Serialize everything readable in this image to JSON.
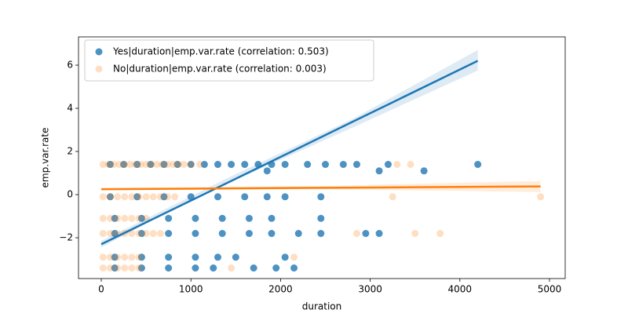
{
  "chart_data": {
    "type": "scatter",
    "xlabel": "duration",
    "ylabel": "emp.var.rate",
    "xlim": [
      -254,
      5175
    ],
    "ylim": [
      -3.89,
      7.31
    ],
    "xticks": [
      0,
      1000,
      2000,
      3000,
      4000,
      5000
    ],
    "yticks": [
      {
        "value": -2,
        "label": "−2"
      },
      0,
      2,
      4,
      6
    ],
    "legend": "upper left",
    "series": [
      {
        "name": "Yes|duration|emp.var.rate (correlation: 0.503)",
        "color": "#1f77b4",
        "alpha": 0.8,
        "x": [
          100,
          250,
          400,
          550,
          700,
          850,
          1000,
          1150,
          1300,
          1450,
          1600,
          1750,
          1900,
          2050,
          2300,
          2500,
          2700,
          2850,
          3200,
          4200,
          1850,
          3100,
          3600,
          100,
          400,
          700,
          1000,
          1300,
          1600,
          1850,
          2050,
          2450,
          150,
          450,
          750,
          1050,
          1350,
          1650,
          1900,
          2450,
          150,
          450,
          750,
          1050,
          1350,
          1650,
          1900,
          2200,
          2450,
          2950,
          3100,
          150,
          450,
          750,
          1050,
          1300,
          1500,
          2050,
          150,
          450,
          750,
          1050,
          1250,
          1700,
          1950,
          2150
        ],
        "values": [
          1.4,
          1.4,
          1.4,
          1.4,
          1.4,
          1.4,
          1.4,
          1.4,
          1.4,
          1.4,
          1.4,
          1.4,
          1.4,
          1.4,
          1.4,
          1.4,
          1.4,
          1.4,
          1.4,
          1.4,
          1.1,
          1.1,
          1.1,
          -0.1,
          -0.1,
          -0.1,
          -0.1,
          -0.1,
          -0.1,
          -0.1,
          -0.1,
          -0.1,
          -1.1,
          -1.1,
          -1.1,
          -1.1,
          -1.1,
          -1.1,
          -1.1,
          -1.1,
          -1.8,
          -1.8,
          -1.8,
          -1.8,
          -1.8,
          -1.8,
          -1.8,
          -1.8,
          -1.8,
          -1.8,
          -1.8,
          -2.9,
          -2.9,
          -2.9,
          -2.9,
          -2.9,
          -2.9,
          -2.9,
          -3.4,
          -3.4,
          -3.4,
          -3.4,
          -3.4,
          -3.4,
          -3.4,
          -3.4
        ],
        "fit": {
          "x": [
            0,
            700,
            1400,
            2800,
            4200
          ],
          "values": [
            -2.3,
            -0.883,
            0.533,
            3.367,
            6.2
          ],
          "ci_lower": [
            -2.45,
            -0.9,
            0.5,
            3.1,
            5.75
          ],
          "ci_upper": [
            -2.15,
            -0.7,
            0.75,
            3.5,
            6.7
          ]
        }
      },
      {
        "name": "No|duration|emp.var.rate (correlation: 0.003)",
        "color": "#ff7f0e",
        "alpha": 0.25,
        "x": [
          20,
          80,
          140,
          200,
          260,
          320,
          380,
          440,
          500,
          560,
          620,
          680,
          740,
          800,
          860,
          920,
          1000,
          1100,
          3300,
          3450,
          20,
          100,
          180,
          260,
          340,
          420,
          500,
          580,
          660,
          740,
          820,
          3250,
          4900,
          20,
          100,
          180,
          260,
          340,
          420,
          500,
          20,
          100,
          180,
          260,
          340,
          420,
          500,
          580,
          660,
          2850,
          3500,
          3780,
          20,
          100,
          180,
          260,
          340,
          420,
          2150,
          20,
          100,
          180,
          260,
          340,
          420,
          1450
        ],
        "values": [
          1.4,
          1.4,
          1.4,
          1.4,
          1.4,
          1.4,
          1.4,
          1.4,
          1.4,
          1.4,
          1.4,
          1.4,
          1.4,
          1.4,
          1.4,
          1.4,
          1.4,
          1.4,
          1.4,
          1.4,
          -0.1,
          -0.1,
          -0.1,
          -0.1,
          -0.1,
          -0.1,
          -0.1,
          -0.1,
          -0.1,
          -0.1,
          -0.1,
          -0.1,
          -0.1,
          -1.1,
          -1.1,
          -1.1,
          -1.1,
          -1.1,
          -1.1,
          -1.1,
          -1.8,
          -1.8,
          -1.8,
          -1.8,
          -1.8,
          -1.8,
          -1.8,
          -1.8,
          -1.8,
          -1.8,
          -1.8,
          -1.8,
          -2.9,
          -2.9,
          -2.9,
          -2.9,
          -2.9,
          -2.9,
          -2.9,
          -3.4,
          -3.4,
          -3.4,
          -3.4,
          -3.4,
          -3.4,
          -3.4
        ],
        "fit": {
          "x": [
            0,
            2450,
            4900
          ],
          "values": [
            0.25,
            0.315,
            0.38
          ],
          "ci_lower": [
            0.2,
            0.25,
            0.12
          ],
          "ci_upper": [
            0.3,
            0.4,
            0.63
          ]
        }
      }
    ]
  }
}
